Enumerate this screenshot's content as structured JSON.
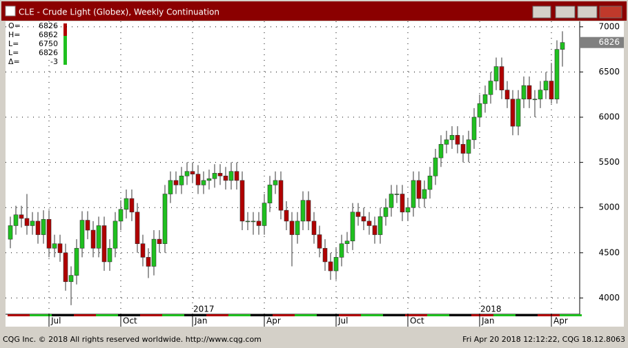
{
  "window": {
    "title": "CLE - Crude Light (Globex), Weekly Continuation",
    "footer_left": "CQG Inc. © 2018 All rights reserved worldwide. http://www.cqg.com",
    "footer_right": "Fri Apr 20 2018 12:12:22, CQG 18.12.8063"
  },
  "ohlc_box": [
    {
      "label": "O=",
      "value": 6826
    },
    {
      "label": "H=",
      "value": 6862
    },
    {
      "label": "L=",
      "value": 6750
    },
    {
      "label": "L=",
      "value": 6826
    },
    {
      "label": "Δ=",
      "value": -3
    }
  ],
  "chart_data": {
    "type": "candlestick",
    "categories": [
      null,
      null,
      null,
      null,
      null,
      null,
      null,
      "Jul",
      null,
      null,
      null,
      null,
      null,
      null,
      null,
      null,
      null,
      null,
      null,
      null,
      "Oct",
      null,
      null,
      null,
      null,
      null,
      null,
      null,
      null,
      null,
      null,
      null,
      null,
      "Jan",
      null,
      null,
      null,
      null,
      null,
      null,
      null,
      null,
      null,
      null,
      null,
      null,
      "Apr",
      null,
      null,
      null,
      null,
      null,
      null,
      null,
      null,
      null,
      null,
      null,
      null,
      "Jul",
      null,
      null,
      null,
      null,
      null,
      null,
      null,
      null,
      null,
      null,
      null,
      null,
      "Oct",
      null,
      null,
      null,
      null,
      null,
      null,
      null,
      null,
      null,
      null,
      null,
      null,
      "Jan",
      null,
      null,
      null,
      null,
      null,
      null,
      null,
      null,
      null,
      null,
      null,
      null,
      "Apr",
      null,
      null
    ],
    "year_labels": [
      null,
      null,
      null,
      null,
      null,
      null,
      null,
      null,
      null,
      null,
      null,
      null,
      null,
      null,
      null,
      null,
      null,
      null,
      null,
      null,
      null,
      null,
      null,
      null,
      null,
      null,
      null,
      null,
      null,
      null,
      null,
      null,
      null,
      "2017",
      null,
      null,
      null,
      null,
      null,
      null,
      null,
      null,
      null,
      null,
      null,
      null,
      null,
      null,
      null,
      null,
      null,
      null,
      null,
      null,
      null,
      null,
      null,
      null,
      null,
      null,
      null,
      null,
      null,
      null,
      null,
      null,
      null,
      null,
      null,
      null,
      null,
      null,
      null,
      null,
      null,
      null,
      null,
      null,
      null,
      null,
      null,
      null,
      null,
      null,
      null,
      "2018",
      null,
      null,
      null,
      null,
      null,
      null,
      null,
      null,
      null,
      null,
      null,
      null,
      null,
      null,
      null
    ],
    "open": [
      4650,
      4800,
      4920,
      4880,
      4800,
      4850,
      4700,
      4870,
      4550,
      4600,
      4500,
      4180,
      4250,
      4550,
      4860,
      4750,
      4550,
      4800,
      4400,
      4550,
      4850,
      4980,
      5100,
      4950,
      4600,
      4450,
      4350,
      4650,
      4600,
      5150,
      5300,
      5250,
      5350,
      5400,
      5370,
      5250,
      5300,
      5320,
      5380,
      5350,
      5300,
      5400,
      5300,
      4850,
      4850,
      4850,
      4800,
      5050,
      5250,
      5300,
      4970,
      4850,
      4700,
      4850,
      5080,
      4850,
      4700,
      4550,
      4400,
      4300,
      4450,
      4600,
      4630,
      4950,
      4900,
      4850,
      4800,
      4700,
      4900,
      5000,
      5150,
      5150,
      4950,
      5000,
      5300,
      5100,
      5200,
      5350,
      5550,
      5700,
      5750,
      5800,
      5700,
      5600,
      5750,
      6000,
      6150,
      6250,
      6400,
      6560,
      6300,
      6200,
      5900,
      6200,
      6350,
      6200,
      6200,
      6300,
      6400,
      6200,
      6750
    ],
    "high": [
      4900,
      5020,
      5020,
      5150,
      4950,
      4950,
      4970,
      4970,
      4700,
      4700,
      4600,
      4350,
      4650,
      4960,
      4960,
      4850,
      4900,
      4900,
      4650,
      4950,
      5080,
      5200,
      5200,
      5050,
      4700,
      4550,
      4750,
      4750,
      5250,
      5400,
      5400,
      5450,
      5500,
      5500,
      5470,
      5400,
      5420,
      5480,
      5480,
      5450,
      5500,
      5500,
      5400,
      4950,
      4950,
      4950,
      5150,
      5350,
      5400,
      5400,
      5070,
      4950,
      4950,
      5180,
      5180,
      4950,
      4800,
      4650,
      4500,
      4550,
      4700,
      4730,
      5050,
      5050,
      5000,
      4950,
      4900,
      5000,
      5100,
      5250,
      5250,
      5250,
      5100,
      5400,
      5400,
      5300,
      5450,
      5650,
      5800,
      5850,
      5900,
      5900,
      5800,
      5850,
      6100,
      6250,
      6350,
      6500,
      6660,
      6660,
      6400,
      6300,
      6300,
      6450,
      6450,
      6300,
      6400,
      6500,
      6600,
      6850,
      6950
    ],
    "low": [
      4550,
      4700,
      4780,
      4700,
      4700,
      4600,
      4600,
      4450,
      4450,
      4400,
      4080,
      3920,
      4150,
      4450,
      4650,
      4450,
      4450,
      4300,
      4300,
      4450,
      4750,
      4880,
      4850,
      4500,
      4350,
      4220,
      4250,
      4500,
      4500,
      5050,
      5150,
      5150,
      5250,
      5270,
      5150,
      5150,
      5200,
      5220,
      5250,
      5200,
      5200,
      5200,
      4750,
      4750,
      4700,
      4700,
      4700,
      4950,
      5150,
      4870,
      4750,
      4350,
      4600,
      4750,
      4750,
      4600,
      4450,
      4300,
      4200,
      4200,
      4350,
      4500,
      4530,
      4800,
      4750,
      4700,
      4600,
      4600,
      4800,
      4900,
      5050,
      4850,
      4850,
      4900,
      5000,
      5000,
      5100,
      5250,
      5450,
      5600,
      5650,
      5600,
      5500,
      5500,
      5650,
      5900,
      6050,
      6150,
      6300,
      6200,
      6100,
      5800,
      5800,
      6100,
      6100,
      6000,
      6100,
      6200,
      6150,
      6150,
      6560
    ],
    "close": [
      4800,
      4920,
      4880,
      4800,
      4850,
      4700,
      4870,
      4550,
      4600,
      4500,
      4180,
      4250,
      4550,
      4860,
      4750,
      4550,
      4800,
      4400,
      4550,
      4850,
      4980,
      5100,
      4950,
      4600,
      4450,
      4350,
      4650,
      4600,
      5150,
      5300,
      5250,
      5350,
      5400,
      5370,
      5250,
      5300,
      5320,
      5380,
      5350,
      5300,
      5400,
      5300,
      4850,
      4850,
      4850,
      4800,
      5050,
      5250,
      5300,
      4970,
      4850,
      4700,
      4850,
      5080,
      4850,
      4700,
      4550,
      4400,
      4300,
      4450,
      4600,
      4630,
      4950,
      4900,
      4850,
      4800,
      4700,
      4900,
      5000,
      5150,
      5150,
      4950,
      5000,
      5300,
      5100,
      5200,
      5350,
      5550,
      5700,
      5750,
      5800,
      5700,
      5600,
      5750,
      6000,
      6150,
      6250,
      6400,
      6560,
      6300,
      6200,
      5900,
      6200,
      6350,
      6200,
      6200,
      6300,
      6400,
      6200,
      6750,
      6826
    ],
    "up_color": "#1fc01f",
    "down_color": "#b00000",
    "ylim": [
      3820,
      7060
    ],
    "yticks": [
      4000,
      4500,
      5000,
      5500,
      6000,
      6500,
      7000
    ],
    "grid": true,
    "last_price": 6826
  }
}
